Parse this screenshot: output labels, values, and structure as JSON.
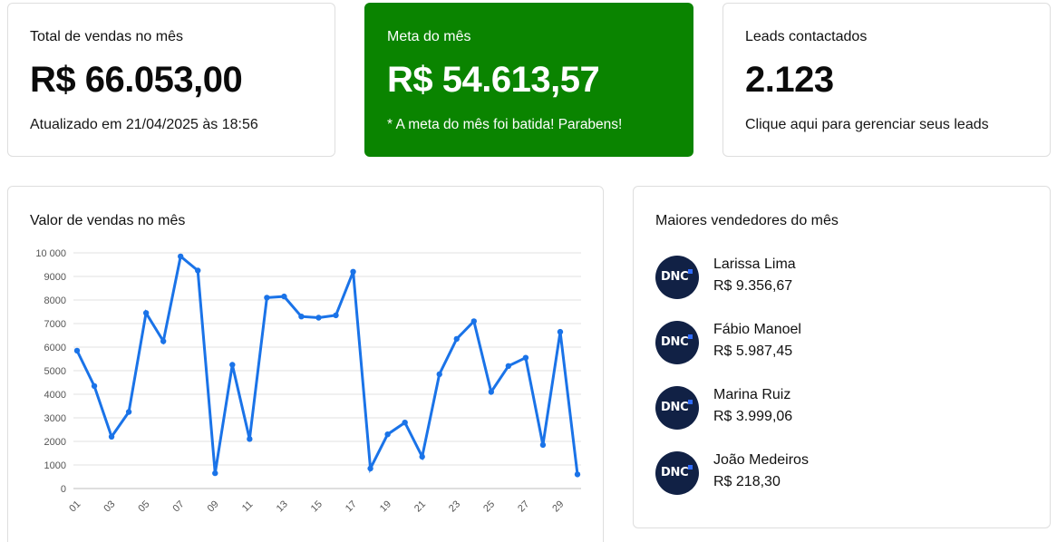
{
  "stats": {
    "total": {
      "title": "Total de vendas no mês",
      "value": "R$ 66.053,00",
      "note": "Atualizado em 21/04/2025 às 18:56"
    },
    "meta": {
      "title": "Meta do mês",
      "value": "R$ 54.613,57",
      "note": "* A meta do mês foi batida! Parabens!"
    },
    "leads": {
      "title": "Leads contactados",
      "value": "2.123",
      "note": "Clique aqui para gerenciar seus leads"
    }
  },
  "colors": {
    "meta_card_bg": "#0a8400",
    "line": "#1a73e8",
    "avatar_bg": "#112145",
    "grid": "#e0e0e0"
  },
  "chart_data": {
    "type": "line",
    "title": "Valor de vendas no mês",
    "x": [
      "01",
      "02",
      "03",
      "04",
      "05",
      "06",
      "07",
      "08",
      "09",
      "10",
      "11",
      "12",
      "13",
      "14",
      "15",
      "16",
      "17",
      "18",
      "19",
      "20",
      "21",
      "22",
      "23",
      "24",
      "25",
      "26",
      "27",
      "28",
      "29",
      "30"
    ],
    "x_tick_labels": [
      "01",
      "03",
      "05",
      "07",
      "09",
      "11",
      "13",
      "15",
      "17",
      "19",
      "21",
      "23",
      "25",
      "27",
      "29"
    ],
    "y_tick_labels": [
      "0",
      "1000",
      "2000",
      "3000",
      "4000",
      "5000",
      "6000",
      "7000",
      "8000",
      "9000",
      "10 000"
    ],
    "ylim": [
      0,
      10000
    ],
    "grid": true,
    "series": [
      {
        "values": [
          5850,
          4350,
          2200,
          3250,
          7450,
          6250,
          9850,
          9250,
          650,
          5250,
          2100,
          8100,
          8150,
          7300,
          7250,
          7350,
          9200,
          850,
          2300,
          2800,
          1350,
          4850,
          6350,
          7100,
          4100,
          5200,
          5550,
          1850,
          6650,
          600
        ]
      }
    ]
  },
  "sellers": {
    "title": "Maiores vendedores do mês",
    "logo_text": "DNC",
    "items": [
      {
        "name": "Larissa Lima",
        "amount": "R$ 9.356,67"
      },
      {
        "name": "Fábio Manoel",
        "amount": "R$ 5.987,45"
      },
      {
        "name": "Marina Ruiz",
        "amount": "R$ 3.999,06"
      },
      {
        "name": "João Medeiros",
        "amount": "R$ 218,30"
      }
    ]
  }
}
